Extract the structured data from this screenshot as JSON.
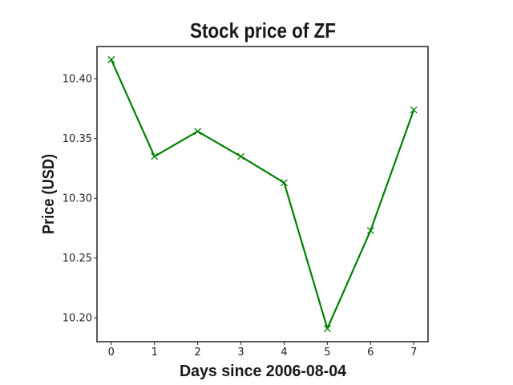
{
  "chart_data": {
    "type": "line",
    "title": "Stock price of ZF",
    "xlabel": "Days since 2006-08-04",
    "ylabel": "Price (USD)",
    "x": [
      0,
      1,
      2,
      3,
      4,
      5,
      6,
      7
    ],
    "series": [
      {
        "values": [
          10.416,
          10.335,
          10.356,
          10.335,
          10.313,
          10.191,
          10.273,
          10.374
        ],
        "color": "#008000",
        "marker": "x"
      }
    ],
    "xlim": [
      -0.33,
      7.33
    ],
    "ylim": [
      10.18,
      10.427
    ],
    "xticks": [
      "0",
      "1",
      "2",
      "3",
      "4",
      "5",
      "6",
      "7"
    ],
    "yticks": [
      "10.20",
      "10.25",
      "10.30",
      "10.35",
      "10.40"
    ],
    "grid": false,
    "legend": "none"
  }
}
